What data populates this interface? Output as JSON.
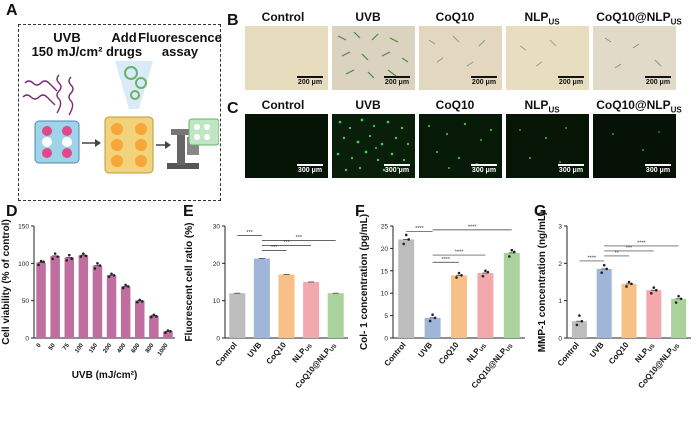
{
  "panel_labels": {
    "A": "A",
    "B": "B",
    "C": "C",
    "D": "D",
    "E": "E",
    "F": "F",
    "G": "G"
  },
  "schematic": {
    "step1_line1": "UVB",
    "step1_line2": "150 mJ/cm²",
    "step2_line1": "Add",
    "step2_line2": "drugs",
    "step3_line1": "Fluorescence",
    "step3_line2": "assay"
  },
  "micro_headers": {
    "control": "Control",
    "uvb": "UVB",
    "coq10": "CoQ10",
    "nlp": "NLP",
    "coqnlp": "CoQ10@NLP",
    "sub": "US"
  },
  "scale_bar_label": "200 μm",
  "scale_bar_label_c": "300 μm",
  "colors": {
    "purple": "#c06ea0",
    "grey": "#bdbdbd",
    "blue": "#9fb6d9",
    "orange": "#f6c087",
    "pink": "#f2a8ad",
    "green": "#a9d39a",
    "fluor": "#3fd24a"
  },
  "chart_data": [
    {
      "id": "D",
      "type": "bar",
      "categories": [
        "0",
        "50",
        "75",
        "100",
        "150",
        "200",
        "400",
        "600",
        "800",
        "1000"
      ],
      "values": [
        101,
        110,
        108,
        111,
        97,
        84,
        69,
        50,
        30,
        9
      ],
      "points": [
        [
          98,
          103,
          102
        ],
        [
          106,
          113,
          109
        ],
        [
          104,
          111,
          106
        ],
        [
          109,
          113,
          110
        ],
        [
          93,
          100,
          97
        ],
        [
          82,
          86,
          84
        ],
        [
          67,
          71,
          69
        ],
        [
          48,
          51,
          49
        ],
        [
          28,
          31,
          29
        ],
        [
          7,
          10,
          9
        ]
      ],
      "xlabel": "UVB (mJ/cm²)",
      "ylabel": "Cell viability (% of control)",
      "ylim": [
        0,
        150
      ],
      "yticks": [
        0,
        50,
        100,
        150
      ]
    },
    {
      "id": "E",
      "type": "bar",
      "categories": [
        "Control",
        "UVB",
        "CoQ10",
        "NLP",
        "CoQ10@NLP"
      ],
      "category_sub": [
        "",
        "",
        "",
        "US",
        "US"
      ],
      "values": [
        12,
        21.3,
        17,
        15,
        12
      ],
      "xlabel": "",
      "ylabel": "Fluorescent cell ratio (%)",
      "ylim": [
        0,
        30
      ],
      "yticks": [
        0,
        10,
        20,
        30
      ],
      "significance": [
        {
          "a": 1,
          "b": 2,
          "text": "***"
        },
        {
          "a": 1,
          "b": 3,
          "text": "***"
        },
        {
          "a": 1,
          "b": 4,
          "text": "***"
        },
        {
          "a": 0,
          "b": 1,
          "text": "***"
        }
      ]
    },
    {
      "id": "F",
      "type": "bar",
      "categories": [
        "Control",
        "UVB",
        "CoQ10",
        "NLP",
        "CoQ10@NLP"
      ],
      "category_sub": [
        "",
        "",
        "",
        "US",
        "US"
      ],
      "values": [
        22,
        4.5,
        14,
        14.5,
        19
      ],
      "points": [
        [
          21,
          23,
          22
        ],
        [
          3.8,
          5.2,
          4.5
        ],
        [
          13.5,
          14.5,
          14
        ],
        [
          13.8,
          15,
          14.7
        ],
        [
          18.2,
          19.6,
          19.2
        ]
      ],
      "xlabel": "",
      "ylabel": "Col- 1 concentration (pg/mL)",
      "ylim": [
        0,
        25
      ],
      "yticks": [
        0,
        5,
        10,
        15,
        20,
        25
      ],
      "significance": [
        {
          "a": 0,
          "b": 1,
          "text": "****"
        },
        {
          "a": 1,
          "b": 2,
          "text": "****"
        },
        {
          "a": 1,
          "b": 3,
          "text": "****"
        },
        {
          "a": 1,
          "b": 4,
          "text": "****"
        }
      ]
    },
    {
      "id": "G",
      "type": "bar",
      "categories": [
        "Control",
        "UVB",
        "CoQ10",
        "NLP",
        "CoQ10@NLP"
      ],
      "category_sub": [
        "",
        "",
        "",
        "US",
        "US"
      ],
      "values": [
        0.45,
        1.85,
        1.45,
        1.28,
        1.05
      ],
      "points": [
        [
          0.35,
          0.6,
          0.45
        ],
        [
          1.75,
          1.95,
          1.85
        ],
        [
          1.38,
          1.5,
          1.45
        ],
        [
          1.2,
          1.35,
          1.28
        ],
        [
          0.95,
          1.12,
          1.05
        ]
      ],
      "xlabel": "",
      "ylabel": "MMP-1 concentration (ng/mL)",
      "ylim": [
        0,
        3
      ],
      "yticks": [
        0,
        1,
        2,
        3
      ],
      "significance": [
        {
          "a": 0,
          "b": 1,
          "text": "****"
        },
        {
          "a": 1,
          "b": 2,
          "text": "**"
        },
        {
          "a": 1,
          "b": 3,
          "text": "***"
        },
        {
          "a": 1,
          "b": 4,
          "text": "****"
        }
      ]
    }
  ]
}
